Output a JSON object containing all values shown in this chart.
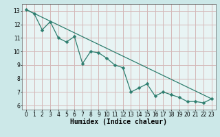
{
  "title": "",
  "xlabel": "Humidex (Indice chaleur)",
  "bg_color": "#cce8e8",
  "plot_bg_color": "#e8f4f4",
  "grid_color": "#d4b8b8",
  "line_color": "#2d7d6e",
  "xlim": [
    -0.5,
    23.5
  ],
  "ylim": [
    5.7,
    13.5
  ],
  "xticks": [
    0,
    1,
    2,
    3,
    4,
    5,
    6,
    7,
    8,
    9,
    10,
    11,
    12,
    13,
    14,
    15,
    16,
    17,
    18,
    19,
    20,
    21,
    22,
    23
  ],
  "yticks": [
    6,
    7,
    8,
    9,
    10,
    11,
    12,
    13
  ],
  "data_x": [
    0,
    1,
    2,
    3,
    4,
    5,
    6,
    7,
    8,
    9,
    10,
    11,
    12,
    13,
    14,
    15,
    16,
    17,
    18,
    19,
    20,
    21,
    22,
    23
  ],
  "data_y": [
    13.1,
    12.8,
    11.6,
    12.2,
    11.0,
    10.7,
    11.1,
    9.1,
    10.0,
    9.9,
    9.5,
    9.0,
    8.8,
    7.0,
    7.3,
    7.6,
    6.7,
    7.0,
    6.8,
    6.6,
    6.3,
    6.3,
    6.2,
    6.5
  ],
  "trend_x": [
    0,
    23
  ],
  "trend_y": [
    13.1,
    6.5
  ],
  "tick_fontsize": 5.5,
  "xlabel_fontsize": 7.0,
  "marker_size": 2.5
}
